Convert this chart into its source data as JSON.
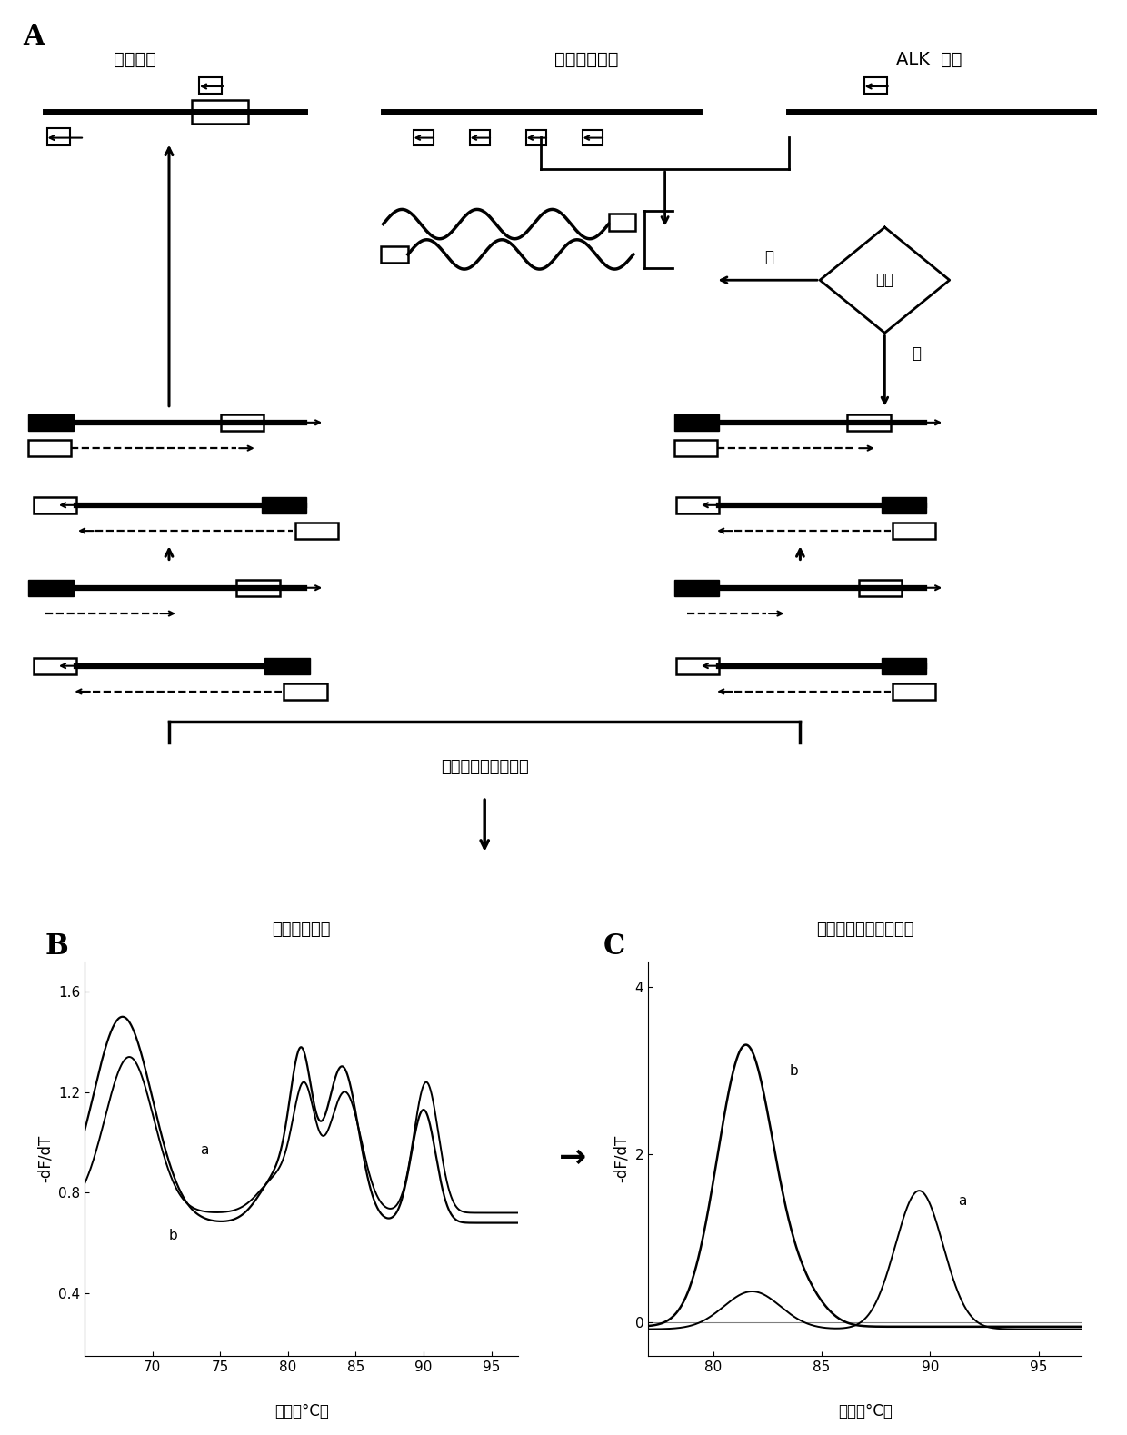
{
  "panel_A_label": "A",
  "panel_B_label": "B",
  "panel_C_label": "C",
  "label_neican": "内参基因",
  "label_ronghe_partner": "融合伴侣基因",
  "label_ALK": "ALK 基因",
  "label_ronghe": "融合",
  "label_shi": "是",
  "label_fou": "否",
  "label_hrm": "高分辨融解曲线分析",
  "label_B_title": "融解曲线分析",
  "label_C_title": "背景去除和标准化计算",
  "xlabel_BC": "温度（°C）",
  "ylabel_B": "-dF/dT",
  "ylabel_C": "-dF/dT",
  "B_xlim": [
    65,
    97
  ],
  "B_ylim": [
    0.15,
    1.72
  ],
  "B_yticks": [
    0.4,
    0.8,
    1.2,
    1.6
  ],
  "B_xticks": [
    70,
    75,
    80,
    85,
    90,
    95
  ],
  "C_xlim": [
    77,
    97
  ],
  "C_ylim": [
    -0.4,
    4.3
  ],
  "C_yticks": [
    0,
    2,
    4
  ],
  "C_xticks": [
    80,
    85,
    90,
    95
  ]
}
